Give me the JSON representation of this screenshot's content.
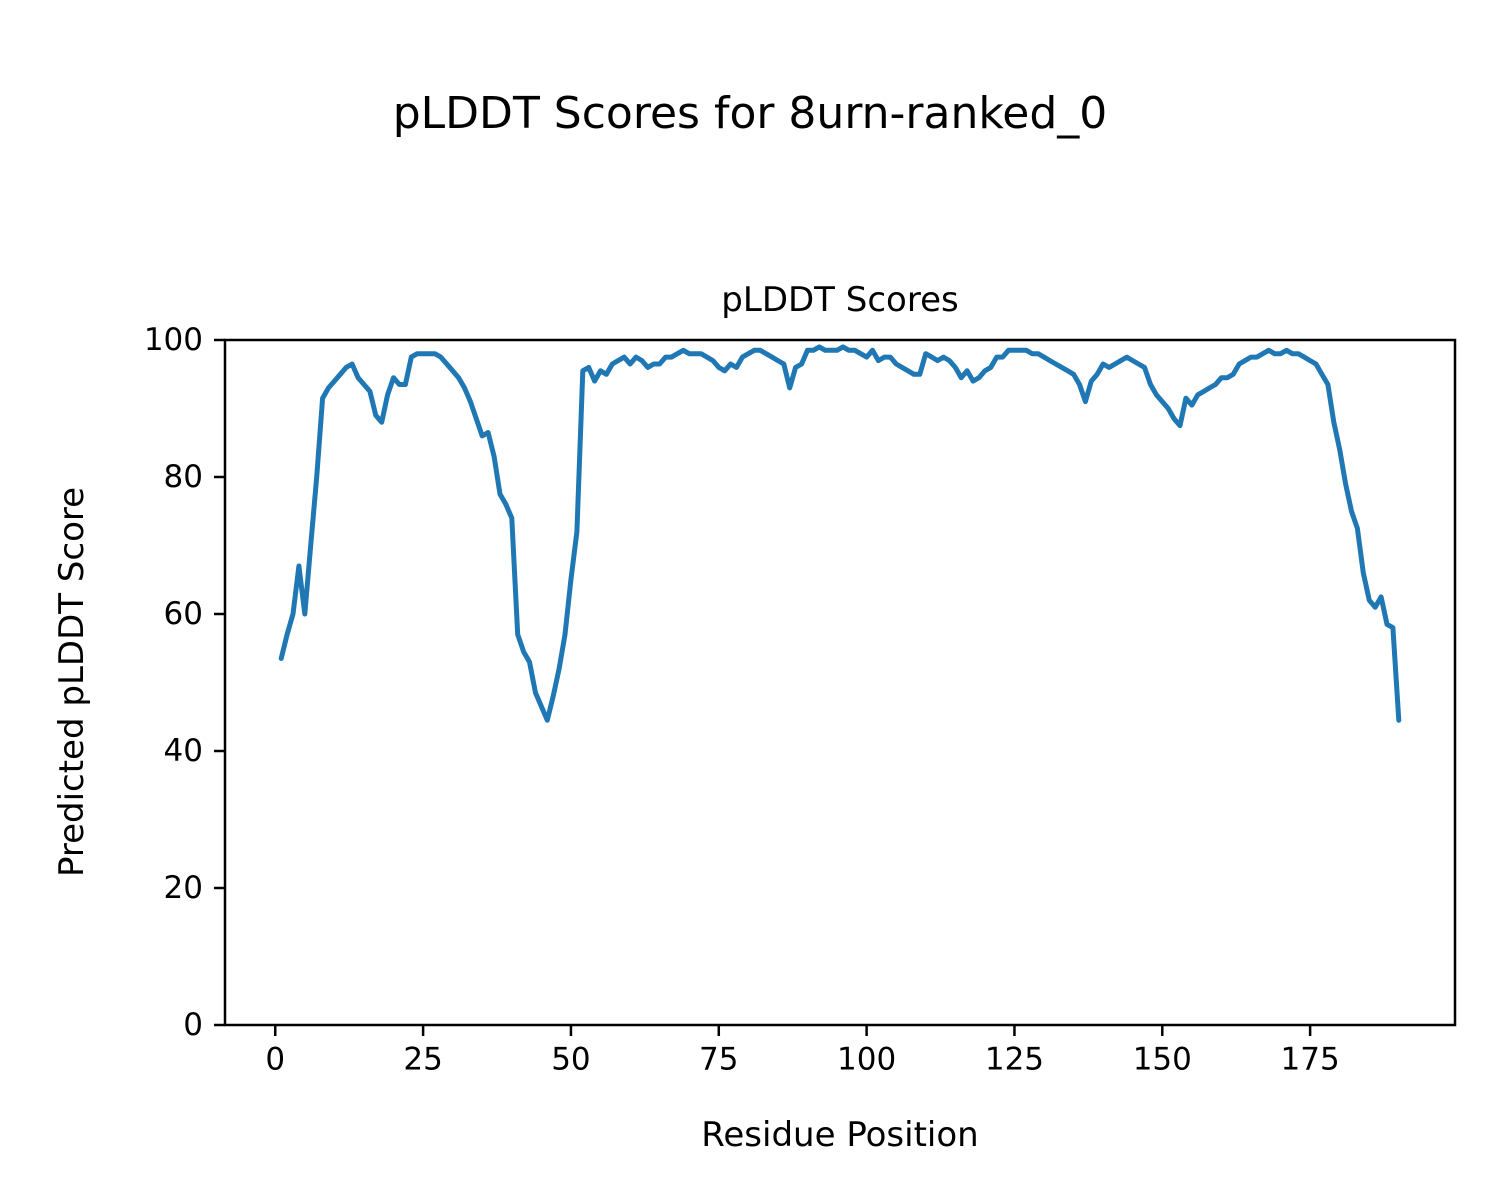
{
  "figure": {
    "title": "pLDDT Scores for 8urn-ranked_0"
  },
  "chart_data": {
    "type": "line",
    "title": "pLDDT Scores",
    "xlabel": "Residue Position",
    "ylabel": "Predicted pLDDT Score",
    "series_name": "pLDDT",
    "line_color": "#1f77b4",
    "grid": false,
    "legend_position": "none",
    "x_start": 1,
    "xticks": [
      0,
      25,
      50,
      75,
      100,
      125,
      150,
      175
    ],
    "yticks": [
      0,
      20,
      40,
      60,
      80,
      100
    ],
    "xlim": [
      -8.5,
      199.5
    ],
    "ylim": [
      0,
      100
    ],
    "values": [
      53.5,
      57,
      60,
      67,
      60,
      70,
      80,
      91.5,
      93,
      94,
      95,
      96,
      96.5,
      94.5,
      93.5,
      92.5,
      89,
      88,
      92,
      94.5,
      93.5,
      93.5,
      97.5,
      98,
      98,
      98,
      98,
      97.5,
      96.5,
      95.5,
      94.5,
      93,
      91,
      88.5,
      86,
      86.5,
      83,
      77.5,
      76,
      74,
      57,
      54.5,
      53,
      48.5,
      46.5,
      44.5,
      48,
      52,
      57,
      65,
      72,
      95.5,
      96,
      94,
      95.5,
      95,
      96.5,
      97,
      97.5,
      96.5,
      97.5,
      97,
      96,
      96.5,
      96.5,
      97.5,
      97.5,
      98,
      98.5,
      98,
      98,
      98,
      97.5,
      97,
      96,
      95.5,
      96.5,
      96,
      97.5,
      98,
      98.5,
      98.5,
      98,
      97.5,
      97,
      96.5,
      93,
      96,
      96.5,
      98.5,
      98.5,
      99,
      98.5,
      98.5,
      98.5,
      99,
      98.5,
      98.5,
      98,
      97.5,
      98.5,
      97,
      97.5,
      97.5,
      96.5,
      96,
      95.5,
      95,
      95,
      98,
      97.5,
      97,
      97.5,
      97,
      96,
      94.5,
      95.5,
      94,
      94.5,
      95.5,
      96,
      97.5,
      97.5,
      98.5,
      98.5,
      98.5,
      98.5,
      98,
      98,
      97.5,
      97,
      96.5,
      96,
      95.5,
      95,
      93.5,
      91,
      94,
      95,
      96.5,
      96,
      96.5,
      97,
      97.5,
      97,
      96.5,
      96,
      93.5,
      92,
      91,
      90,
      88.5,
      87.5,
      91.5,
      90.5,
      92,
      92.5,
      93,
      93.5,
      94.5,
      94.5,
      95,
      96.5,
      97,
      97.5,
      97.5,
      98,
      98.5,
      98,
      98,
      98.5,
      98,
      98,
      97.5,
      97,
      96.5,
      95,
      93.5,
      88,
      84,
      79,
      75,
      72.5,
      66,
      62,
      61,
      62.5,
      58.5,
      58,
      44.5
    ]
  }
}
